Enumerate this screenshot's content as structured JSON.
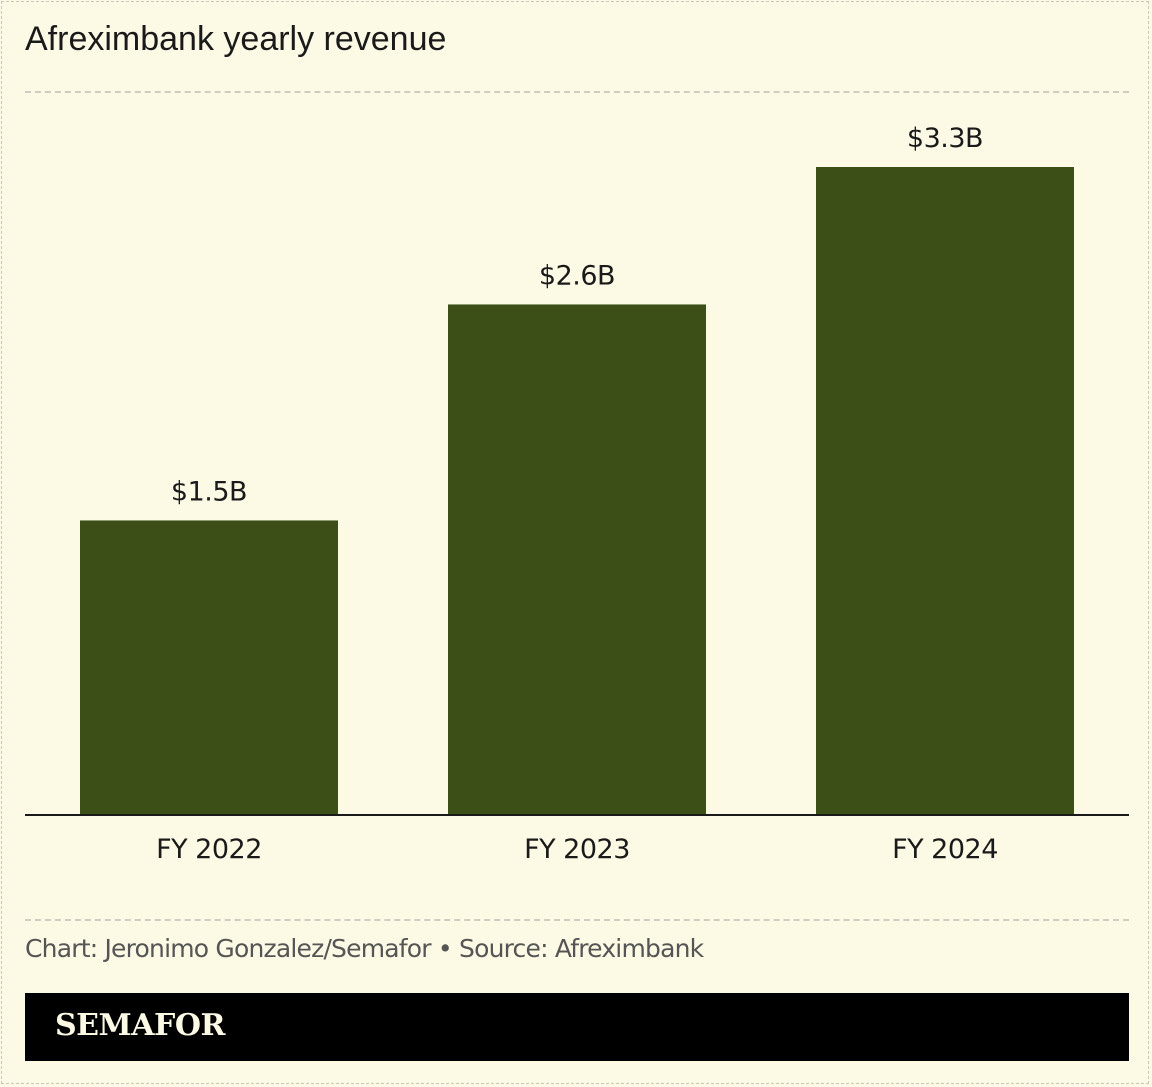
{
  "chart_data": {
    "type": "bar",
    "title": "Afreximbank yearly revenue",
    "categories": [
      "FY 2022",
      "FY 2023",
      "FY 2024"
    ],
    "values": [
      1.5,
      2.6,
      3.3
    ],
    "data_labels": [
      "$1.5B",
      "$2.6B",
      "$3.3B"
    ],
    "unit": "USD billions",
    "ylim": [
      0,
      3.3
    ],
    "xlabel": "",
    "ylabel": "",
    "grid": false,
    "legend": "none",
    "bar_color": "#3b4f17"
  },
  "footer": {
    "credit": "Chart: Jeronimo Gonzalez/Semafor • Source: Afreximbank",
    "brand": "SEMAFOR"
  },
  "colors": {
    "background": "#fcf9e4",
    "bar": "#3b4f17",
    "text": "#1a1a1a",
    "muted_text": "#555555",
    "brand_bar": "#000000"
  }
}
